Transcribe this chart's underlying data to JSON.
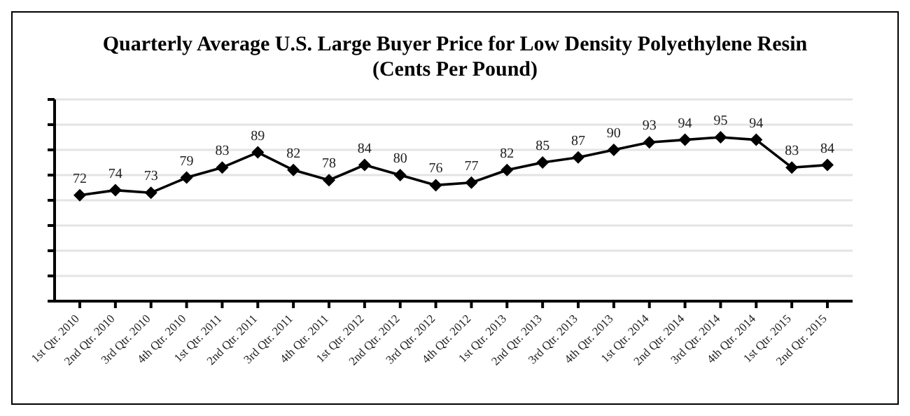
{
  "chart_data": {
    "type": "line",
    "title": "Quarterly Average U.S. Large Buyer Price for Low Density Polyethylene Resin",
    "subtitle": "(Cents Per Pound)",
    "categories": [
      "1st Qtr. 2010",
      "2nd Qtr. 2010",
      "3rd Qtr. 2010",
      "4th Qtr. 2010",
      "1st Qtr. 2011",
      "2nd Qtr. 2011",
      "3rd Qtr. 2011",
      "4th Qtr. 2011",
      "1st Qtr. 2012",
      "2nd Qtr. 2012",
      "3rd Qtr. 2012",
      "4th Qtr. 2012",
      "1st Qtr. 2013",
      "2nd Qtr. 2013",
      "3rd Qtr. 2013",
      "4th Qtr. 2013",
      "1st Qtr. 2014",
      "2nd Qtr. 2014",
      "3rd Qtr. 2014",
      "4th Qtr. 2014",
      "1st Qtr. 2015",
      "2nd Qtr. 2015"
    ],
    "series": [
      {
        "color": "#000000",
        "values": [
          72,
          74,
          73,
          79,
          83,
          89,
          82,
          78,
          84,
          80,
          76,
          77,
          82,
          85,
          87,
          90,
          93,
          94,
          95,
          94,
          83,
          84
        ]
      }
    ],
    "ylim": [
      30,
      110
    ],
    "yticks": [
      {
        "value": 30,
        "label": null
      },
      {
        "value": 40,
        "label": null
      },
      {
        "value": 50,
        "label": null
      },
      {
        "value": 60,
        "label": null
      },
      {
        "value": 70,
        "label": null
      },
      {
        "value": 80,
        "label": null
      },
      {
        "value": 90,
        "label": null
      },
      {
        "value": 100,
        "label": null
      },
      {
        "value": 110,
        "label": null
      }
    ],
    "grid": "y",
    "data_labels": true,
    "marker": "diamond",
    "line_style": "solid",
    "legend": false
  }
}
